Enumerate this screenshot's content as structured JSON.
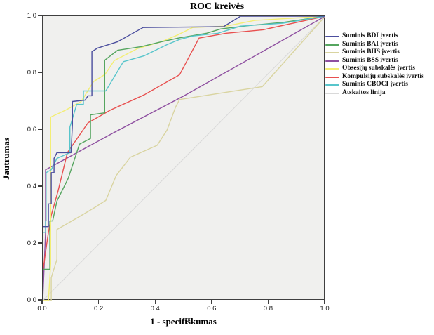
{
  "title": "ROC kreivės",
  "axes": {
    "x_label": "1 - specifiškumas",
    "y_label": "Jautrumas",
    "x_ticks": [
      "0.0",
      "0.2",
      "0.4",
      "0.6",
      "0.8",
      "1.0"
    ],
    "y_ticks": [
      "0.0",
      "0.2",
      "0.4",
      "0.6",
      "0.8",
      "1.0"
    ]
  },
  "colors": {
    "plot_background": "#f0f0ee",
    "frame": "#3f3f3f",
    "text": "#000000"
  },
  "chart_data": {
    "type": "line",
    "title": "ROC kreivės",
    "xlabel": "1 - specifiškumas",
    "ylabel": "Jautrumas",
    "xlim": [
      0,
      1
    ],
    "ylim": [
      0,
      1
    ],
    "grid": false,
    "legend_position": "right",
    "series": [
      {
        "name": "Suminis BDI įvertis",
        "color": "#4b4e9e",
        "points": [
          [
            0,
            0
          ],
          [
            0,
            0.26
          ],
          [
            0.02,
            0.26
          ],
          [
            0.02,
            0.34
          ],
          [
            0.03,
            0.34
          ],
          [
            0.03,
            0.45
          ],
          [
            0.04,
            0.45
          ],
          [
            0.04,
            0.5
          ],
          [
            0.05,
            0.52
          ],
          [
            0.1,
            0.52
          ],
          [
            0.105,
            0.62
          ],
          [
            0.105,
            0.7
          ],
          [
            0.15,
            0.705
          ],
          [
            0.16,
            0.72
          ],
          [
            0.174,
            0.72
          ],
          [
            0.174,
            0.875
          ],
          [
            0.194,
            0.888
          ],
          [
            0.265,
            0.91
          ],
          [
            0.31,
            0.935
          ],
          [
            0.355,
            0.96
          ],
          [
            0.64,
            0.963
          ],
          [
            0.7,
            1.0
          ],
          [
            1,
            1
          ]
        ]
      },
      {
        "name": "Suminis BAI įvertis",
        "color": "#55a55f",
        "points": [
          [
            0,
            0
          ],
          [
            0,
            0.11
          ],
          [
            0.025,
            0.11
          ],
          [
            0.025,
            0.28
          ],
          [
            0.035,
            0.28
          ],
          [
            0.05,
            0.35
          ],
          [
            0.09,
            0.43
          ],
          [
            0.13,
            0.55
          ],
          [
            0.169,
            0.57
          ],
          [
            0.169,
            0.653
          ],
          [
            0.219,
            0.66
          ],
          [
            0.219,
            0.845
          ],
          [
            0.265,
            0.88
          ],
          [
            0.35,
            0.893
          ],
          [
            0.42,
            0.91
          ],
          [
            0.48,
            0.923
          ],
          [
            0.58,
            0.94
          ],
          [
            0.63,
            0.955
          ],
          [
            0.73,
            0.967
          ],
          [
            0.85,
            0.978
          ],
          [
            1,
            1
          ]
        ]
      },
      {
        "name": "Suminis BHS įvertis",
        "color": "#d9d4a0",
        "points": [
          [
            0,
            0
          ],
          [
            0.03,
            0
          ],
          [
            0.03,
            0.08
          ],
          [
            0.05,
            0.145
          ],
          [
            0.05,
            0.25
          ],
          [
            0.12,
            0.29
          ],
          [
            0.18,
            0.325
          ],
          [
            0.223,
            0.352
          ],
          [
            0.26,
            0.44
          ],
          [
            0.31,
            0.504
          ],
          [
            0.405,
            0.546
          ],
          [
            0.44,
            0.6
          ],
          [
            0.47,
            0.68
          ],
          [
            0.484,
            0.707
          ],
          [
            0.777,
            0.752
          ],
          [
            1,
            1
          ]
        ]
      },
      {
        "name": "Suminis BSS įvertis",
        "color": "#8e4fa0",
        "points": [
          [
            0,
            0
          ],
          [
            0.01,
            0.24
          ],
          [
            0.01,
            0.46
          ],
          [
            0.25,
            0.59
          ],
          [
            0.5,
            0.72
          ],
          [
            0.75,
            0.86
          ],
          [
            1,
            1
          ]
        ]
      },
      {
        "name": "Obsesijų subskalės įvertis",
        "color": "#f3ee74",
        "points": [
          [
            0,
            0
          ],
          [
            0.02,
            0
          ],
          [
            0.028,
            0.13
          ],
          [
            0.028,
            0.645
          ],
          [
            0.082,
            0.67
          ],
          [
            0.136,
            0.7
          ],
          [
            0.18,
            0.77
          ],
          [
            0.22,
            0.795
          ],
          [
            0.253,
            0.844
          ],
          [
            0.335,
            0.886
          ],
          [
            0.42,
            0.91
          ],
          [
            0.48,
            0.935
          ],
          [
            0.53,
            0.96
          ],
          [
            0.65,
            0.965
          ],
          [
            0.75,
            0.985
          ],
          [
            1,
            1
          ]
        ]
      },
      {
        "name": "Kompulsijų subskalės įvertis",
        "color": "#e8504f",
        "points": [
          [
            0,
            0
          ],
          [
            0,
            0.1
          ],
          [
            0.017,
            0.22
          ],
          [
            0.03,
            0.3
          ],
          [
            0.054,
            0.385
          ],
          [
            0.087,
            0.52
          ],
          [
            0.16,
            0.625
          ],
          [
            0.24,
            0.67
          ],
          [
            0.36,
            0.724
          ],
          [
            0.484,
            0.794
          ],
          [
            0.553,
            0.923
          ],
          [
            0.65,
            0.94
          ],
          [
            0.78,
            0.952
          ],
          [
            1,
            1
          ]
        ]
      },
      {
        "name": "Suminis CBOCI įvertis",
        "color": "#57c5cb",
        "points": [
          [
            0,
            0
          ],
          [
            0,
            0.24
          ],
          [
            0.01,
            0.24
          ],
          [
            0.01,
            0.28
          ],
          [
            0.012,
            0.28
          ],
          [
            0.012,
            0.45
          ],
          [
            0.03,
            0.46
          ],
          [
            0.05,
            0.5
          ],
          [
            0.096,
            0.52
          ],
          [
            0.096,
            0.61
          ],
          [
            0.12,
            0.69
          ],
          [
            0.144,
            0.69
          ],
          [
            0.144,
            0.737
          ],
          [
            0.223,
            0.737
          ],
          [
            0.285,
            0.84
          ],
          [
            0.36,
            0.861
          ],
          [
            0.44,
            0.9
          ],
          [
            0.484,
            0.918
          ],
          [
            0.53,
            0.93
          ],
          [
            0.62,
            0.94
          ],
          [
            0.7,
            0.965
          ],
          [
            0.85,
            0.975
          ],
          [
            1,
            1
          ]
        ]
      },
      {
        "name": "Atskaitos linija",
        "color": "#d9d9d9",
        "points": [
          [
            0,
            0
          ],
          [
            1,
            1
          ]
        ]
      }
    ]
  }
}
